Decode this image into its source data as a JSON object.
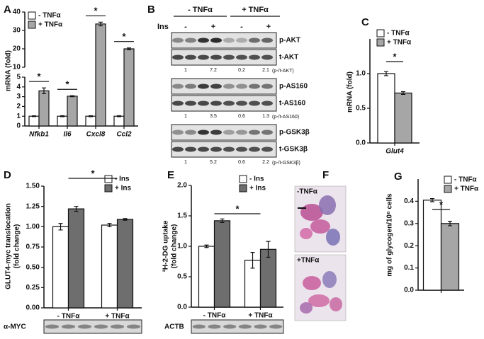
{
  "chart_data": [
    {
      "type": "bar",
      "panel": "A",
      "ylabel": [
        "mRNA (fold)"
      ],
      "categories": [
        "Nfkb1",
        "Il6",
        "Cxcl8",
        "Ccl2"
      ],
      "series": [
        {
          "name": "- TNFα",
          "color": "#ffffff",
          "values": [
            1,
            1,
            1,
            1
          ],
          "errors": [
            0.04,
            0.05,
            0.05,
            0.05
          ]
        },
        {
          "name": "+ TNFα",
          "color": "#a6a6a6",
          "values": [
            3.6,
            3.05,
            33.5,
            20
          ],
          "errors": [
            0.3,
            0.05,
            1.0,
            0.5
          ]
        }
      ],
      "ylim": [
        0,
        40
      ],
      "ybreak": [
        5,
        10
      ],
      "yticks": [
        0,
        1,
        2,
        3,
        4,
        5,
        10,
        20,
        30,
        40
      ],
      "annotations": [
        "*",
        "*",
        "*",
        "*"
      ]
    },
    {
      "type": "bar",
      "panel": "C",
      "ylabel": [
        "mRNA (fold)"
      ],
      "categories": [
        "Glut4"
      ],
      "series": [
        {
          "name": "- TNFα",
          "color": "#ffffff",
          "values": [
            1.0
          ],
          "errors": [
            0.03
          ]
        },
        {
          "name": "+ TNFα",
          "color": "#a6a6a6",
          "values": [
            0.72
          ],
          "errors": [
            0.02
          ]
        }
      ],
      "ylim": [
        0,
        1.5
      ],
      "yticks": [
        {
          "value": 0,
          "label": "0.0"
        },
        {
          "value": 0.5,
          "label": "0.5"
        },
        {
          "value": 1,
          "label": "1.0"
        }
      ],
      "annotations": [
        "*"
      ]
    },
    {
      "type": "bar",
      "panel": "D",
      "ylabel": [
        "GLUT4-myc translocation",
        "(fold change)"
      ],
      "categories": [
        "- TNFα",
        "+ TNFα"
      ],
      "series": [
        {
          "name": "- Ins",
          "color": "#ffffff",
          "values": [
            1.0,
            1.02
          ],
          "errors": [
            0.04,
            0.02
          ]
        },
        {
          "name": "+ Ins",
          "color": "#6e6e6e",
          "values": [
            1.22,
            1.09
          ],
          "errors": [
            0.03,
            0.01
          ]
        }
      ],
      "ylim": [
        0,
        1.5
      ],
      "yticks": [
        {
          "value": 0,
          "label": "0.00"
        },
        {
          "value": 0.25,
          "label": "0.25"
        },
        {
          "value": 0.5,
          "label": "0.50"
        },
        {
          "value": 0.75,
          "label": "0.75"
        },
        {
          "value": 1,
          "label": "1.00"
        },
        {
          "value": 1.25,
          "label": "1.25"
        },
        {
          "value": 1.5,
          "label": "1.50"
        }
      ],
      "annotations": [
        "*"
      ],
      "blot_label": "α-MYC"
    },
    {
      "type": "bar",
      "panel": "E",
      "ylabel": [
        "³H-2-DG uptake",
        "(fold change)"
      ],
      "categories": [
        "- TNFα",
        "+ TNFα"
      ],
      "series": [
        {
          "name": "- Ins",
          "color": "#ffffff",
          "values": [
            1.0,
            0.77
          ],
          "errors": [
            0.02,
            0.13
          ]
        },
        {
          "name": "+ Ins",
          "color": "#6e6e6e",
          "values": [
            1.42,
            0.95
          ],
          "errors": [
            0.03,
            0.13
          ]
        }
      ],
      "ylim": [
        0,
        2
      ],
      "yticks": [
        {
          "value": 0,
          "label": "0.0"
        },
        {
          "value": 0.5,
          "label": "0.5"
        },
        {
          "value": 1,
          "label": "1.0"
        },
        {
          "value": 1.5,
          "label": "1.5"
        },
        {
          "value": 2,
          "label": "2.0"
        }
      ],
      "annotations": [
        "*"
      ],
      "blot_label": "ACTB"
    },
    {
      "type": "bar",
      "panel": "G",
      "ylabel": [
        "mg of glycogen/10⁶ cells"
      ],
      "categories": [
        null
      ],
      "series": [
        {
          "name": "- TNFα",
          "color": "#ffffff",
          "values": [
            0.405
          ],
          "errors": [
            0.007
          ]
        },
        {
          "name": "+ TNFα",
          "color": "#a6a6a6",
          "values": [
            0.3
          ],
          "errors": [
            0.01
          ]
        }
      ],
      "ylim": [
        0,
        0.5
      ],
      "yticks": [
        {
          "value": 0,
          "label": "0.0"
        },
        {
          "value": 0.1,
          "label": "0.1"
        },
        {
          "value": 0.2,
          "label": "0.2"
        },
        {
          "value": 0.3,
          "label": "0.3"
        },
        {
          "value": 0.4,
          "label": "0.4"
        }
      ],
      "annotations": [
        "*"
      ]
    }
  ],
  "blots": {
    "panel": "B",
    "groups": [
      "- TNFα",
      "+ TNFα"
    ],
    "treatment": "Ins",
    "lanes": [
      "-",
      "+",
      "-",
      "+"
    ],
    "panels": [
      {
        "rows": [
          "p-AKT",
          "t-AKT"
        ],
        "ratios": [
          1,
          7.2,
          0.2,
          2.1
        ],
        "ratio_label": "(p-/t-AKT)"
      },
      {
        "rows": [
          "p-AS160",
          "t-AS160"
        ],
        "ratios": [
          1,
          3.5,
          0.6,
          1.3
        ],
        "ratio_label": "(p-/t-AS160)"
      },
      {
        "rows": [
          "p-GSK3β",
          "t-GSK3β"
        ],
        "ratios": [
          1,
          5.2,
          0.6,
          2.2
        ],
        "ratio_label": "(p-/t-GSK3β)"
      }
    ]
  },
  "micrographs": {
    "panel": "F",
    "labels": [
      "-TNFα",
      "+TNFα"
    ]
  }
}
